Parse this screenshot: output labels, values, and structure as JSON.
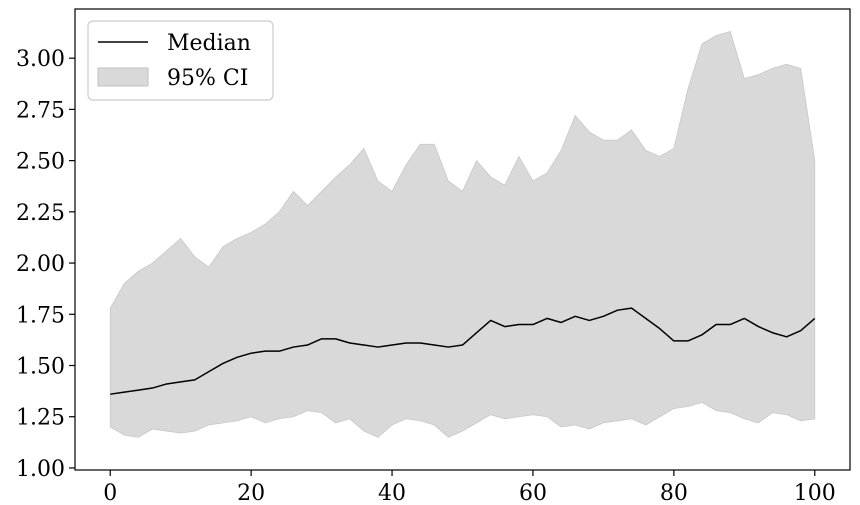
{
  "chart_data": {
    "type": "area",
    "x_ticks": [
      0,
      20,
      40,
      60,
      80,
      100
    ],
    "y_ticks": [
      1.0,
      1.25,
      1.5,
      1.75,
      2.0,
      2.25,
      2.5,
      2.75,
      3.0
    ],
    "x_tick_labels": [
      "0",
      "20",
      "40",
      "60",
      "80",
      "100"
    ],
    "y_tick_labels": [
      "1.00",
      "1.25",
      "1.50",
      "1.75",
      "2.00",
      "2.25",
      "2.50",
      "2.75",
      "3.00"
    ],
    "xlim": [
      -5,
      105
    ],
    "ylim": [
      0.99,
      3.24
    ],
    "grid": false,
    "legend": {
      "placement": "top-left",
      "entries": [
        {
          "label": "Median",
          "kind": "line",
          "color": "#000000"
        },
        {
          "label": "95% CI",
          "kind": "patch",
          "color": "#d9d9d9"
        }
      ]
    },
    "series": [
      {
        "name": "Median",
        "color": "#000000",
        "x": [
          0,
          2,
          4,
          6,
          8,
          10,
          12,
          14,
          16,
          18,
          20,
          22,
          24,
          26,
          28,
          30,
          32,
          34,
          36,
          38,
          40,
          42,
          44,
          46,
          48,
          50,
          52,
          54,
          56,
          58,
          60,
          62,
          64,
          66,
          68,
          70,
          72,
          74,
          76,
          78,
          80,
          82,
          84,
          86,
          88,
          90,
          92,
          94,
          96,
          98,
          100
        ],
        "y": [
          1.36,
          1.37,
          1.38,
          1.39,
          1.41,
          1.42,
          1.43,
          1.47,
          1.51,
          1.54,
          1.56,
          1.57,
          1.57,
          1.59,
          1.6,
          1.63,
          1.63,
          1.61,
          1.6,
          1.59,
          1.6,
          1.61,
          1.61,
          1.6,
          1.59,
          1.6,
          1.66,
          1.72,
          1.69,
          1.7,
          1.7,
          1.73,
          1.71,
          1.74,
          1.72,
          1.74,
          1.77,
          1.78,
          1.73,
          1.68,
          1.62,
          1.62,
          1.65,
          1.7,
          1.7,
          1.73,
          1.69,
          1.66,
          1.64,
          1.67,
          1.73
        ]
      },
      {
        "name": "95% CI",
        "color": "#d9d9d9",
        "x": [
          0,
          2,
          4,
          6,
          8,
          10,
          12,
          14,
          16,
          18,
          20,
          22,
          24,
          26,
          28,
          30,
          32,
          34,
          36,
          38,
          40,
          42,
          44,
          46,
          48,
          50,
          52,
          54,
          56,
          58,
          60,
          62,
          64,
          66,
          68,
          70,
          72,
          74,
          76,
          78,
          80,
          82,
          84,
          86,
          88,
          90,
          92,
          94,
          96,
          98,
          100
        ],
        "lower": [
          1.2,
          1.16,
          1.15,
          1.19,
          1.18,
          1.17,
          1.18,
          1.21,
          1.22,
          1.23,
          1.25,
          1.22,
          1.24,
          1.25,
          1.28,
          1.27,
          1.22,
          1.24,
          1.18,
          1.15,
          1.21,
          1.24,
          1.23,
          1.21,
          1.15,
          1.18,
          1.22,
          1.26,
          1.24,
          1.25,
          1.26,
          1.25,
          1.2,
          1.21,
          1.19,
          1.22,
          1.23,
          1.24,
          1.21,
          1.25,
          1.29,
          1.3,
          1.32,
          1.28,
          1.27,
          1.24,
          1.22,
          1.27,
          1.26,
          1.23,
          1.24
        ],
        "upper": [
          1.78,
          1.9,
          1.96,
          2.0,
          2.06,
          2.12,
          2.03,
          1.98,
          2.08,
          2.12,
          2.15,
          2.19,
          2.25,
          2.35,
          2.28,
          2.35,
          2.42,
          2.48,
          2.56,
          2.4,
          2.35,
          2.48,
          2.58,
          2.58,
          2.4,
          2.35,
          2.5,
          2.42,
          2.38,
          2.52,
          2.4,
          2.44,
          2.55,
          2.72,
          2.64,
          2.6,
          2.6,
          2.65,
          2.55,
          2.52,
          2.56,
          2.85,
          3.07,
          3.11,
          3.13,
          2.9,
          2.92,
          2.95,
          2.97,
          2.95,
          2.5
        ]
      }
    ]
  }
}
